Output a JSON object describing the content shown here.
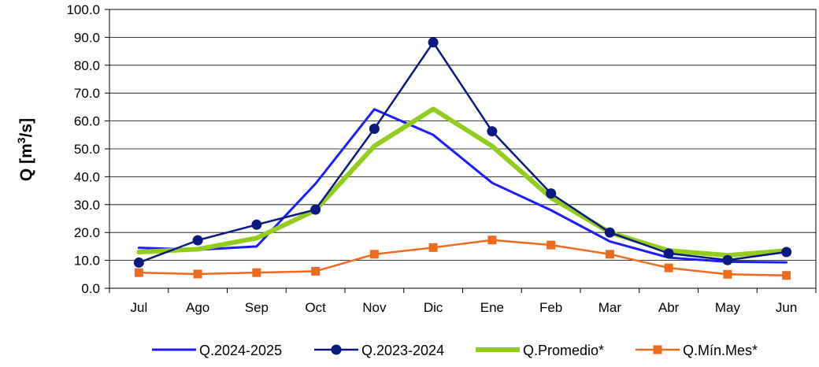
{
  "chart_data": {
    "type": "line",
    "title": "",
    "xlabel": "",
    "ylabel": {
      "pre": "Q [m",
      "sup": "3",
      "post": "/s]"
    },
    "ylim": [
      0,
      100
    ],
    "ytick_step": 10,
    "grid": "horizontal",
    "legend_position": "bottom",
    "categories": [
      "Jul",
      "Ago",
      "Sep",
      "Oct",
      "Nov",
      "Dic",
      "Ene",
      "Feb",
      "Mar",
      "Abr",
      "May",
      "Jun"
    ],
    "series": [
      {
        "name": "Q.2024-2025",
        "color": "#1c1cff",
        "marker": "none",
        "values": [
          14.5,
          13.8,
          15.0,
          37.5,
          64.2,
          55.0,
          37.8,
          28.0,
          16.8,
          11.0,
          9.5,
          9.3
        ]
      },
      {
        "name": "Q.2023-2024",
        "color": "#0a1a80",
        "marker": "circle",
        "values": [
          9.2,
          17.2,
          22.8,
          28.2,
          57.2,
          88.2,
          56.3,
          34.0,
          20.0,
          12.5,
          10.1,
          13.0
        ]
      },
      {
        "name": "Q.Promedio*",
        "color": "#92cd1e",
        "marker": "none",
        "values": [
          13.0,
          14.0,
          18.0,
          28.0,
          51.0,
          64.3,
          51.0,
          32.5,
          20.0,
          13.5,
          11.8,
          13.5
        ]
      },
      {
        "name": "Q.Mín.Mes*",
        "color": "#f06a1e",
        "marker": "square",
        "values": [
          5.6,
          5.1,
          5.6,
          6.1,
          12.2,
          14.6,
          17.3,
          15.5,
          12.2,
          7.3,
          5.0,
          4.6
        ]
      }
    ]
  }
}
